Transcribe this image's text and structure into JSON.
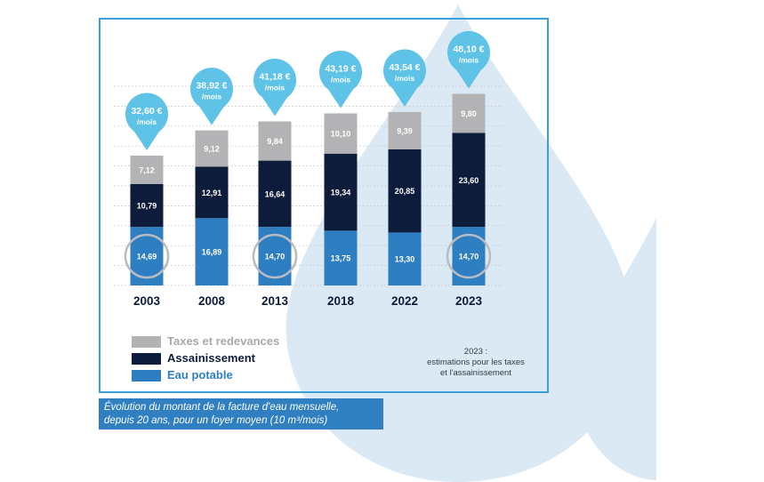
{
  "chart_data": {
    "type": "bar",
    "stacked": true,
    "categories": [
      "2003",
      "2008",
      "2013",
      "2018",
      "2022",
      "2023"
    ],
    "series": [
      {
        "name": "Eau potable",
        "color": "#2e7fc2",
        "values": [
          14.69,
          16.89,
          14.7,
          13.75,
          13.3,
          14.7
        ],
        "labels": [
          "14,69",
          "16,89",
          "14,70",
          "13,75",
          "13,30",
          "14,70"
        ]
      },
      {
        "name": "Assainissement",
        "color": "#0e1c3c",
        "values": [
          10.79,
          12.91,
          16.64,
          19.34,
          20.85,
          23.6
        ],
        "labels": [
          "10,79",
          "12,91",
          "16,64",
          "19,34",
          "20,85",
          "23,60"
        ]
      },
      {
        "name": "Taxes et redevances",
        "color": "#b3b3b5",
        "values": [
          7.12,
          9.12,
          9.84,
          10.1,
          9.39,
          9.8
        ],
        "labels": [
          "7,12",
          "9,12",
          "9,84",
          "10,10",
          "9,39",
          "9,80"
        ]
      }
    ],
    "totals": [
      "32,60 €",
      "38,92 €",
      "41,18 €",
      "43,19 €",
      "43,54 €",
      "48,10 €"
    ],
    "total_unit": "/mois",
    "highlighted_categories": [
      "2003",
      "2013",
      "2023"
    ],
    "ylim": [
      0,
      50
    ],
    "grid": true,
    "legend_position": "bottom-left"
  },
  "legend": [
    {
      "label": "Taxes et redevances",
      "color": "#a9a9ab"
    },
    {
      "label": "Assainissement",
      "color": "#0e1c3c"
    },
    {
      "label": "Eau potable",
      "color": "#2e7fc2"
    }
  ],
  "note": {
    "line1": "2023 :",
    "line2": "estimations pour les taxes",
    "line3": "et l'assainissement"
  },
  "caption": {
    "line1": "Évolution du montant de la facture d'eau mensuelle,",
    "line2": "depuis 20 ans, pour un foyer moyen (10 m³/mois)"
  },
  "colors": {
    "pin": "#5ec3e6",
    "drop": "#dceaf6",
    "frame": "#3aa0d8",
    "caption_bg": "#2f7fc1"
  }
}
